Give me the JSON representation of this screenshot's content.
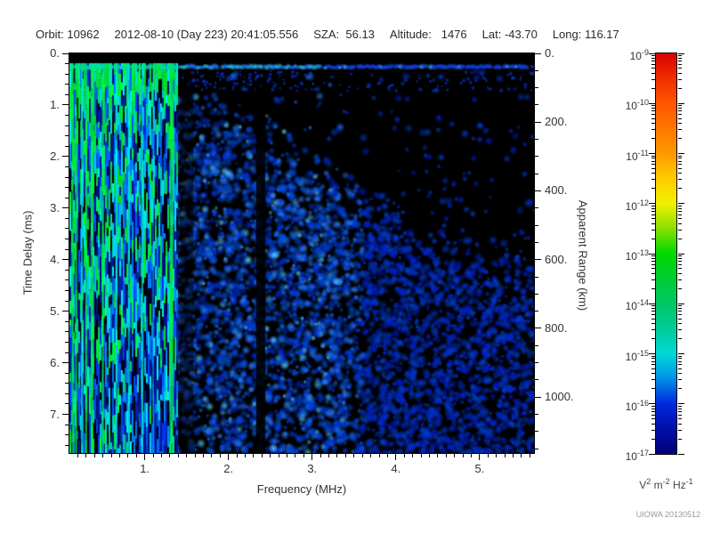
{
  "header": {
    "fields": [
      "Orbit: 10962",
      "2012-08-10 (Day 223) 20:41:05.556",
      "SZA:  56.13",
      "Altitude:   1476",
      "Lat: -43.70",
      "Long: 116.17"
    ]
  },
  "credit": {
    "text": "UIOWA 20130512"
  },
  "chart_data": {
    "type": "heatmap",
    "subtype": "radar-sounder-ionogram",
    "axes": {
      "x": {
        "label": "Frequency (MHz)",
        "range": [
          0.1,
          5.65
        ],
        "major_ticks": [
          {
            "value": 1,
            "label": "1."
          },
          {
            "value": 2,
            "label": "2."
          },
          {
            "value": 3,
            "label": "3."
          },
          {
            "value": 4,
            "label": "4."
          },
          {
            "value": 5,
            "label": "5."
          }
        ],
        "minor_step": 0.1
      },
      "y_left": {
        "label": "Time Delay (ms)",
        "range": [
          0,
          7.75
        ],
        "major_ticks": [
          {
            "value": 0,
            "label": "0."
          },
          {
            "value": 1,
            "label": "1."
          },
          {
            "value": 2,
            "label": "2."
          },
          {
            "value": 3,
            "label": "3."
          },
          {
            "value": 4,
            "label": "4."
          },
          {
            "value": 5,
            "label": "5."
          },
          {
            "value": 6,
            "label": "6."
          },
          {
            "value": 7,
            "label": "7."
          }
        ],
        "minor_step": 0.2
      },
      "y_right": {
        "label": "Apparent Range (km)",
        "km_per_ms": 150,
        "major_ticks": [
          {
            "value": 0,
            "label": "0."
          },
          {
            "value": 200,
            "label": "200."
          },
          {
            "value": 400,
            "label": "400."
          },
          {
            "value": 600,
            "label": "600."
          },
          {
            "value": 800,
            "label": "800."
          },
          {
            "value": 1000,
            "label": "1000."
          }
        ],
        "minor_step_km": 50
      }
    },
    "colorbar": {
      "scale": "log",
      "base": "10",
      "decade_exponents": [
        -9,
        -10,
        -11,
        -12,
        -13,
        -14,
        -15,
        -16,
        -17
      ],
      "unit_parts": [
        {
          "base": "V",
          "sup": "2"
        },
        {
          "base": "m",
          "sup": "-2"
        },
        {
          "base": "Hz",
          "sup": "-1"
        }
      ],
      "gradient": [
        {
          "pos": 0.0,
          "color": "#d80000"
        },
        {
          "pos": 0.065,
          "color": "#f03000"
        },
        {
          "pos": 0.125,
          "color": "#ff5500"
        },
        {
          "pos": 0.1875,
          "color": "#ff7700"
        },
        {
          "pos": 0.25,
          "color": "#ff9900"
        },
        {
          "pos": 0.3125,
          "color": "#ffcc00"
        },
        {
          "pos": 0.375,
          "color": "#f0f000"
        },
        {
          "pos": 0.4375,
          "color": "#88e000"
        },
        {
          "pos": 0.5,
          "color": "#00d800"
        },
        {
          "pos": 0.5625,
          "color": "#00cc33"
        },
        {
          "pos": 0.625,
          "color": "#00c866"
        },
        {
          "pos": 0.6875,
          "color": "#00cc99"
        },
        {
          "pos": 0.75,
          "color": "#00d8d8"
        },
        {
          "pos": 0.8125,
          "color": "#0090e8"
        },
        {
          "pos": 0.875,
          "color": "#0028dd"
        },
        {
          "pos": 0.9375,
          "color": "#0010a8"
        },
        {
          "pos": 1.0,
          "color": "#000078"
        }
      ]
    },
    "spectrogram": {
      "background": "#000000",
      "seed": 20130512,
      "first_echo": {
        "delay_ms": 0.26
      },
      "stripe_zone_f_range": [
        0.1,
        1.39
      ],
      "bright_lines": [
        {
          "f_mhz": 0.14,
          "color": "green",
          "width": 2
        },
        {
          "f_mhz": 0.18,
          "color": "green",
          "width": 2
        },
        {
          "f_mhz": 0.25,
          "color": "cyan",
          "width": 2
        },
        {
          "f_mhz": 0.3,
          "color": "green",
          "width": 2
        },
        {
          "f_mhz": 0.37,
          "color": "green",
          "width": 3
        },
        {
          "f_mhz": 0.5,
          "color": "green",
          "width": 2
        },
        {
          "f_mhz": 0.66,
          "color": "cyan",
          "width": 2
        },
        {
          "f_mhz": 0.81,
          "color": "cyan",
          "width": 2
        },
        {
          "f_mhz": 0.97,
          "color": "cyan",
          "width": 2
        },
        {
          "f_mhz": 1.1,
          "color": "cyan",
          "width": 1
        },
        {
          "f_mhz": 1.32,
          "color": "green",
          "width": 4
        }
      ],
      "dark_gaps": [
        {
          "f_range": [
            2.33,
            2.44
          ],
          "opacity": 0.88
        },
        {
          "f_range": [
            1.42,
            1.58
          ],
          "opacity": 0.5
        }
      ],
      "quiet_zone_boundary_ms": [
        [
          1.39,
          0.35
        ],
        [
          2.0,
          0.75
        ],
        [
          2.5,
          1.15
        ],
        [
          3.0,
          1.65
        ],
        [
          3.5,
          2.15
        ],
        [
          4.0,
          2.7
        ],
        [
          4.6,
          3.25
        ],
        [
          5.2,
          3.5
        ],
        [
          5.65,
          3.65
        ]
      ]
    }
  }
}
